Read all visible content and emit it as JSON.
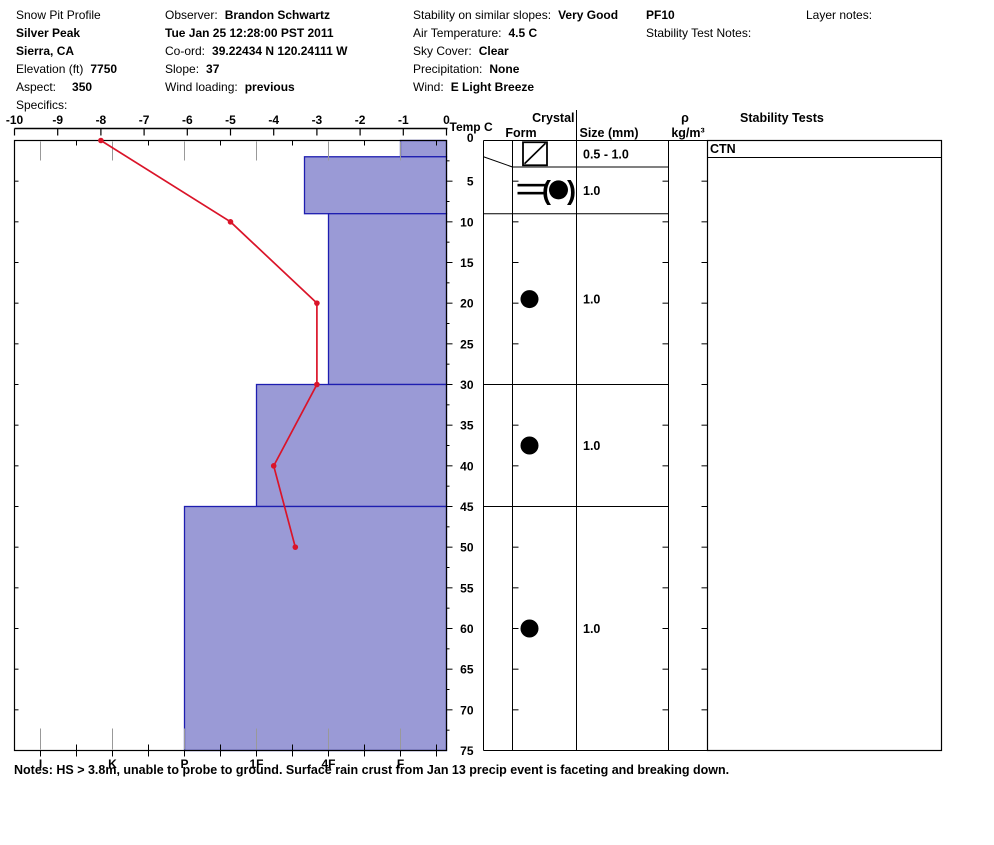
{
  "header": {
    "col1": {
      "title": "Snow Pit Profile",
      "site": "Silver Peak",
      "region": "Sierra, CA",
      "elevation_label": "Elevation (ft)",
      "elevation": "7750",
      "aspect_label": "Aspect:",
      "aspect": "350",
      "specifics_label": "Specifics:"
    },
    "col2": {
      "observer_label": "Observer:",
      "observer": "Brandon Schwartz",
      "datetime": "Tue Jan 25 12:28:00 PST 2011",
      "coord_label": "Co-ord:",
      "coord": "39.22434 N 120.24111 W",
      "slope_label": "Slope:",
      "slope": "37",
      "wind_loading_label": "Wind loading:",
      "wind_loading": "previous"
    },
    "col3": {
      "stability_label": "Stability on similar slopes:",
      "stability": "Very Good",
      "air_temp_label": "Air Temperature:",
      "air_temp": "4.5 C",
      "sky_label": "Sky Cover:",
      "sky": "Clear",
      "precip_label": "Precipitation:",
      "precip": "None",
      "wind_label": "Wind:",
      "wind": "E Light Breeze"
    },
    "col4": {
      "pit_id": "PF10",
      "stability_test_notes_label": "Stability Test Notes:"
    },
    "col5": {
      "layer_notes_label": "Layer notes:"
    }
  },
  "notes": "Notes:  HS > 3.8m, unable to probe to ground. Surface rain crust from Jan 13 precip event is faceting and breaking down.",
  "chart_data": {
    "type": "snow-pit-profile",
    "temp_axis": {
      "label": "Temp C",
      "min": -10,
      "max": 0,
      "ticks": [
        -10,
        -9,
        -8,
        -7,
        -6,
        -5,
        -4,
        -3,
        -2,
        -1,
        0
      ]
    },
    "depth_axis": {
      "unit": "cm",
      "min": 0,
      "max": 75,
      "step": 5,
      "labels": [
        "0",
        "5",
        "10",
        "15",
        "20",
        "25",
        "30",
        "35",
        "40",
        "45",
        "50",
        "55",
        "60",
        "65",
        "70",
        "75"
      ]
    },
    "hardness_axis": {
      "categories": [
        "I",
        "K",
        "P",
        "1F",
        "4F",
        "F"
      ]
    },
    "temperature_profile": [
      {
        "depth_cm": 0,
        "temp_c": -8.0
      },
      {
        "depth_cm": 10,
        "temp_c": -5.0
      },
      {
        "depth_cm": 20,
        "temp_c": -3.0
      },
      {
        "depth_cm": 30,
        "temp_c": -3.0
      },
      {
        "depth_cm": 40,
        "temp_c": -4.0
      },
      {
        "depth_cm": 50,
        "temp_c": -3.5
      }
    ],
    "layers": [
      {
        "top_cm": 0,
        "bottom_cm": 2,
        "hardness": "F",
        "grain_form": "rain_crust",
        "size_mm": "0.5 - 1.0"
      },
      {
        "top_cm": 2,
        "bottom_cm": 9,
        "hardness": "4F+",
        "grain_form": "crust_with_rounds",
        "size_mm": "1.0"
      },
      {
        "top_cm": 9,
        "bottom_cm": 30,
        "hardness": "4F",
        "grain_form": "rounds",
        "size_mm": "1.0"
      },
      {
        "top_cm": 30,
        "bottom_cm": 45,
        "hardness": "1F",
        "grain_form": "rounds",
        "size_mm": "1.0"
      },
      {
        "top_cm": 45,
        "bottom_cm": 75,
        "hardness": "P",
        "grain_form": "rounds",
        "size_mm": "1.0"
      }
    ],
    "table_headers": {
      "crystal": "Crystal",
      "form": "Form",
      "size": "Size (mm)",
      "density_symbol": "ρ",
      "density_unit": "kg/m³",
      "stability": "Stability Tests"
    },
    "stability_tests": [
      "CTN"
    ],
    "colors": {
      "bar_fill": "#9a9ad6",
      "bar_border": "#1e1eb0",
      "temp_line": "#da1429",
      "gridline": "#999999"
    }
  }
}
